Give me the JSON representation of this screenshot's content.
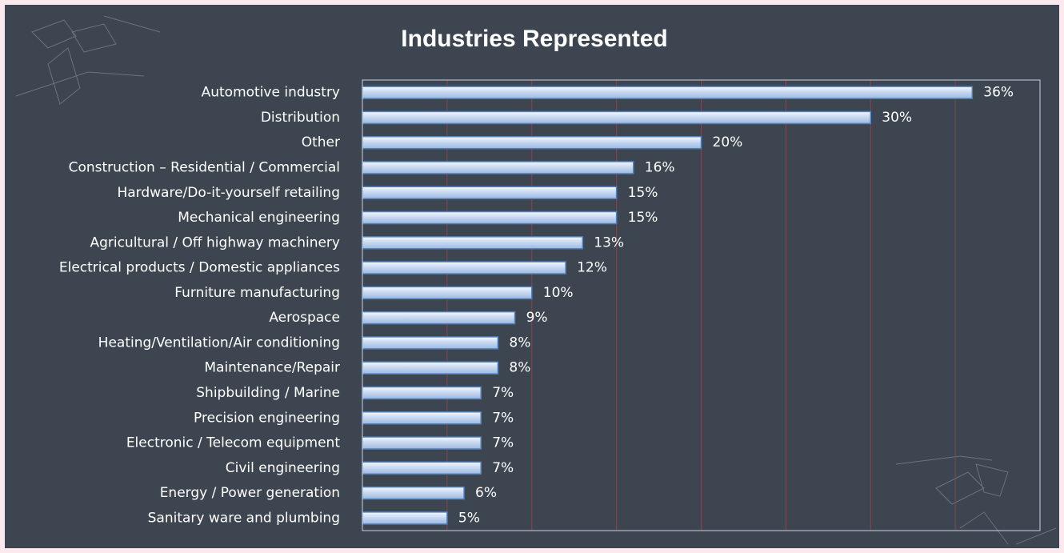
{
  "chart_data": {
    "type": "bar",
    "orientation": "horizontal",
    "title": "Industries Represented",
    "categories": [
      "Automotive industry",
      "Distribution",
      "Other",
      "Construction – Residential / Commercial",
      "Hardware/Do-it-yourself retailing",
      "Mechanical engineering",
      "Agricultural / Off highway machinery",
      "Electrical products / Domestic appliances",
      "Furniture manufacturing",
      "Aerospace",
      "Heating/Ventilation/Air conditioning",
      "Maintenance/Repair",
      "Shipbuilding / Marine",
      "Precision engineering",
      "Electronic / Telecom equipment",
      "Civil engineering",
      "Energy / Power generation",
      "Sanitary ware and plumbing"
    ],
    "values": [
      36,
      30,
      20,
      16,
      15,
      15,
      13,
      12,
      10,
      9,
      8,
      8,
      7,
      7,
      7,
      7,
      6,
      5
    ],
    "value_labels": [
      "36%",
      "30%",
      "20%",
      "16%",
      "15%",
      "15%",
      "13%",
      "12%",
      "10%",
      "9%",
      "8%",
      "8%",
      "7%",
      "7%",
      "7%",
      "7%",
      "6%",
      "5%"
    ],
    "color": "#c5d6ef",
    "xlim": [
      0,
      40
    ],
    "xticks": [
      0,
      5,
      10,
      15,
      20,
      25,
      30,
      35,
      40
    ],
    "grid": true
  }
}
